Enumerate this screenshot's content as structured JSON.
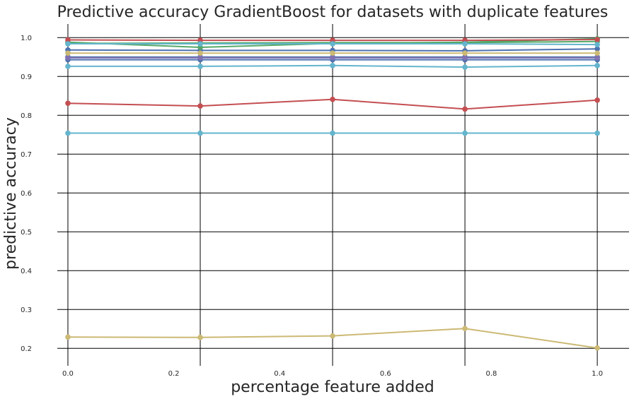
{
  "chart_data": {
    "type": "line",
    "title": "Predictive accuracy GradientBoost for datasets with duplicate features",
    "xlabel": "percentage feature added",
    "ylabel": "predictive accuracy",
    "xlim": [
      -0.02,
      1.06
    ],
    "ylim": [
      0.155,
      1.035
    ],
    "xticks": [
      "0.0",
      "0.2",
      "0.4",
      "0.6",
      "0.8",
      "1.0"
    ],
    "yticks": [
      "0.2",
      "0.3",
      "0.4",
      "0.5",
      "0.6",
      "0.7",
      "0.8",
      "0.9",
      "1.0"
    ],
    "grid_x": [
      0.0,
      0.25,
      0.5,
      0.75,
      1.0
    ],
    "grid_y": [
      0.2,
      0.3,
      0.4,
      0.5,
      0.6,
      0.7,
      0.8,
      0.9,
      1.0
    ],
    "grid": true,
    "x": [
      0.0,
      0.25,
      0.5,
      0.75,
      1.0
    ],
    "series": [
      {
        "color": "#4c72b0",
        "values": [
          0.968,
          0.967,
          0.967,
          0.966,
          0.971
        ]
      },
      {
        "color": "#4c72b0",
        "values": [
          0.95,
          0.95,
          0.95,
          0.95,
          0.95
        ]
      },
      {
        "color": "#4c72b0",
        "values": [
          0.943,
          0.943,
          0.943,
          0.943,
          0.943
        ]
      },
      {
        "color": "#55a868",
        "values": [
          0.988,
          0.975,
          0.985,
          0.988,
          0.997
        ]
      },
      {
        "color": "#55a868",
        "values": [
          0.985,
          0.986,
          0.987,
          0.987,
          0.99
        ]
      },
      {
        "color": "#c44e52",
        "values": [
          0.994,
          0.993,
          0.993,
          0.993,
          0.995
        ]
      },
      {
        "color": "#c44e52",
        "values": [
          0.831,
          0.824,
          0.841,
          0.816,
          0.839
        ]
      },
      {
        "color": "#8172b2",
        "values": [
          0.948,
          0.948,
          0.948,
          0.948,
          0.948
        ]
      },
      {
        "color": "#ccb974",
        "values": [
          0.96,
          0.96,
          0.96,
          0.96,
          0.96
        ]
      },
      {
        "color": "#ccb974",
        "values": [
          0.229,
          0.228,
          0.232,
          0.251,
          0.201
        ]
      },
      {
        "color": "#64b5cd",
        "values": [
          0.926,
          0.926,
          0.928,
          0.924,
          0.928
        ]
      },
      {
        "color": "#64b5cd",
        "values": [
          0.754,
          0.754,
          0.754,
          0.754,
          0.754
        ]
      },
      {
        "color": "#64b5cd",
        "values": [
          0.984,
          0.984,
          0.984,
          0.984,
          0.982
        ]
      }
    ]
  }
}
